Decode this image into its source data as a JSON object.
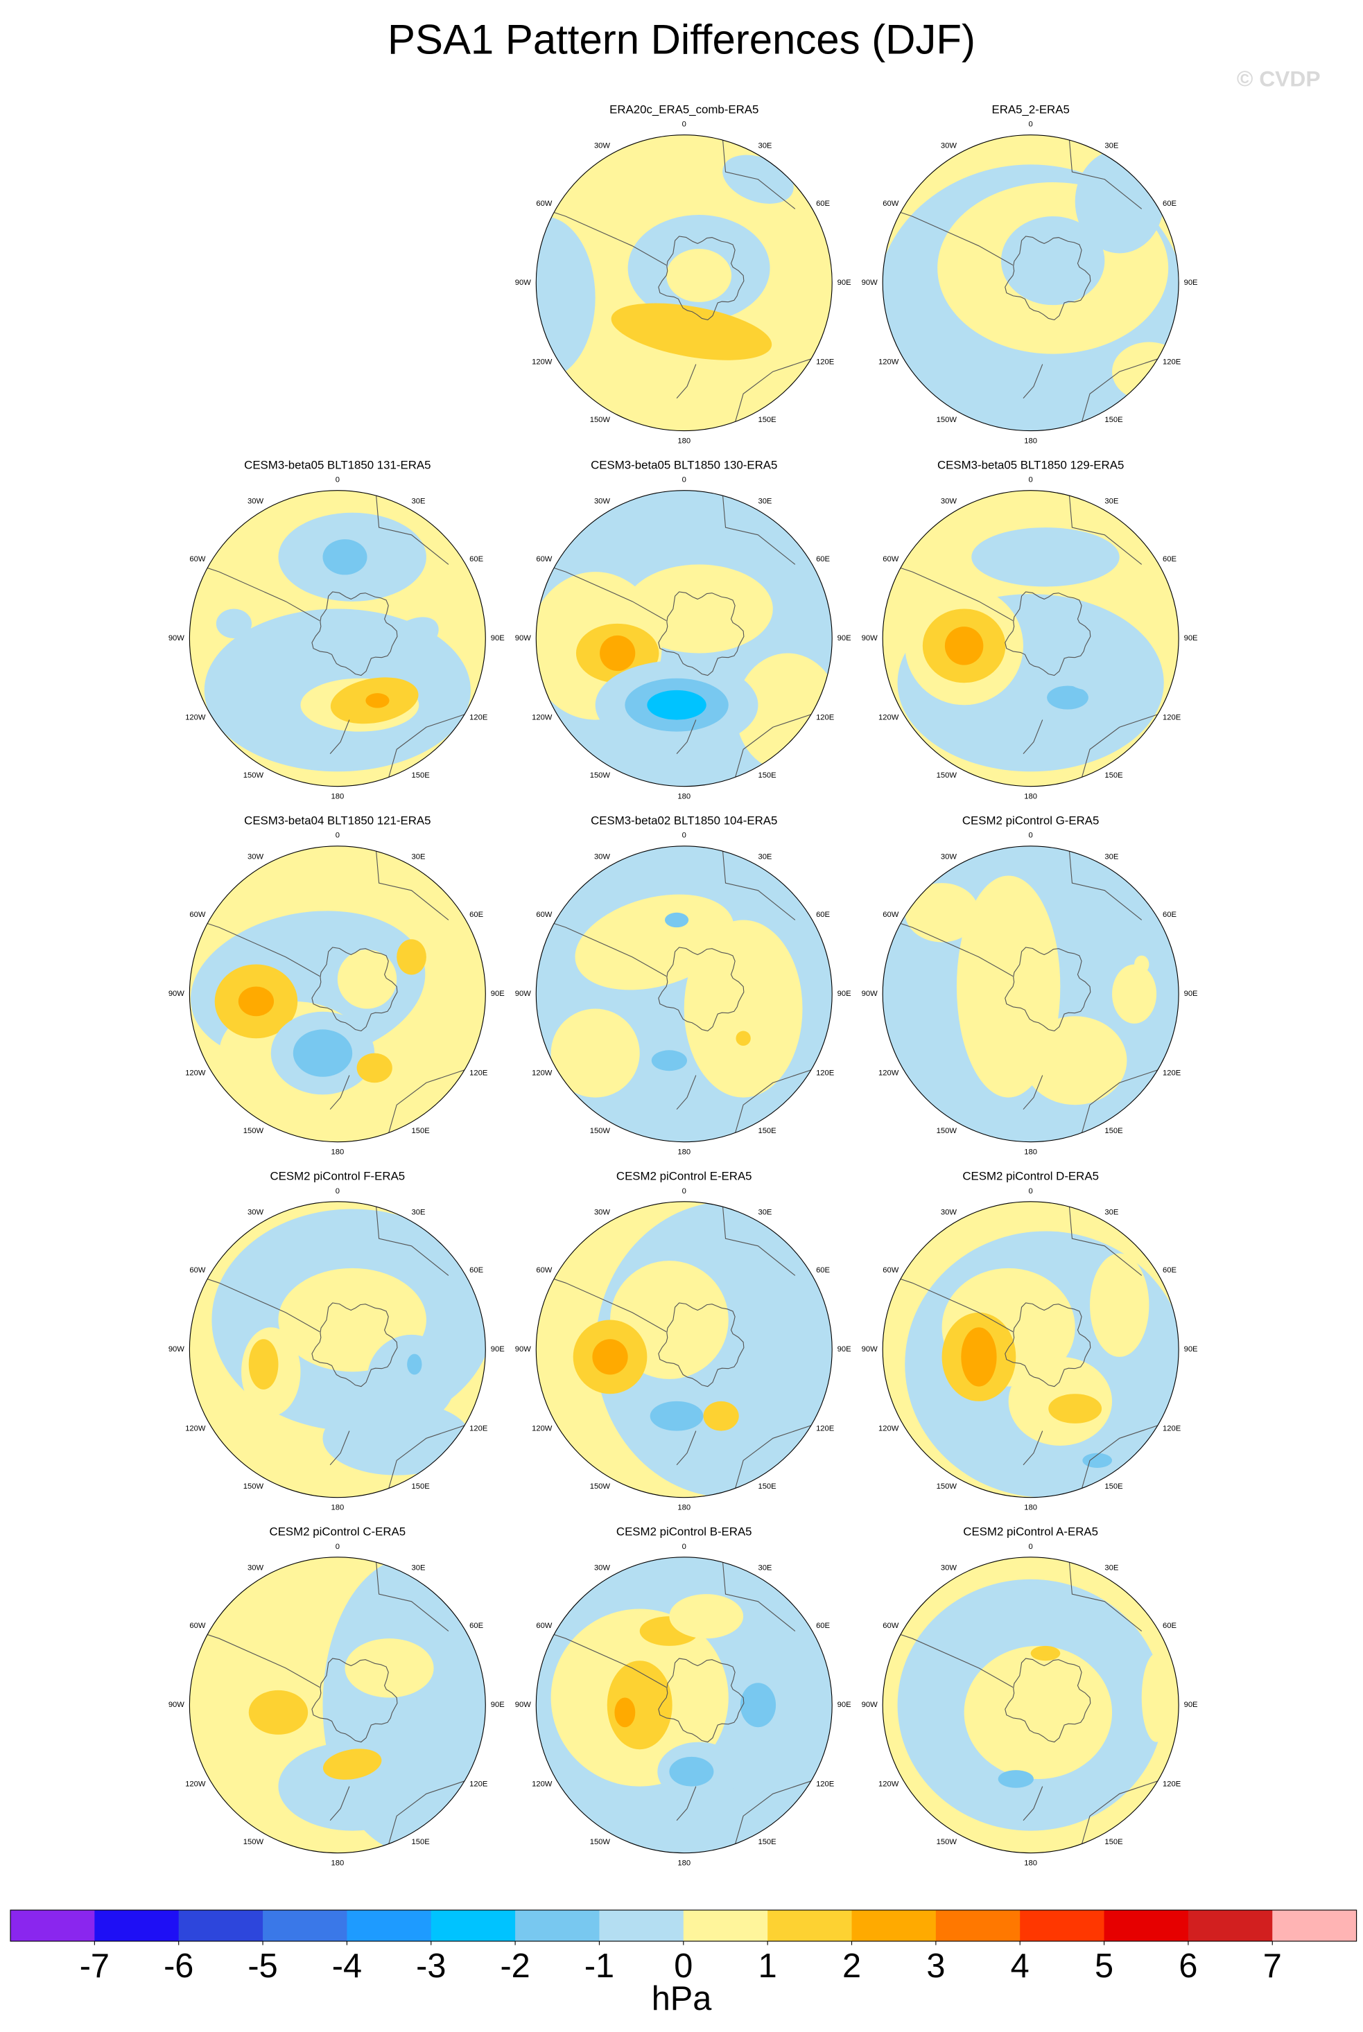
{
  "title": "PSA1 Pattern Differences (DJF)",
  "watermark": "© CVDP",
  "panels": [
    {
      "title": "ERA20c_ERA5_comb-ERA5"
    },
    {
      "title": "ERA5_2-ERA5"
    },
    {
      "title": "CESM3-beta05 BLT1850 131-ERA5"
    },
    {
      "title": "CESM3-beta05 BLT1850 130-ERA5"
    },
    {
      "title": "CESM3-beta05 BLT1850 129-ERA5"
    },
    {
      "title": "CESM3-beta04 BLT1850 121-ERA5"
    },
    {
      "title": "CESM3-beta02 BLT1850 104-ERA5"
    },
    {
      "title": "CESM2 piControl G-ERA5"
    },
    {
      "title": "CESM2 piControl F-ERA5"
    },
    {
      "title": "CESM2 piControl E-ERA5"
    },
    {
      "title": "CESM2 piControl D-ERA5"
    },
    {
      "title": "CESM2 piControl C-ERA5"
    },
    {
      "title": "CESM2 piControl B-ERA5"
    },
    {
      "title": "CESM2 piControl A-ERA5"
    }
  ],
  "longitude_labels": [
    "0",
    "30E",
    "60E",
    "90E",
    "120E",
    "150E",
    "180",
    "150W",
    "120W",
    "90W",
    "60W",
    "30W"
  ],
  "colorbar": {
    "levels": [
      -7,
      -6,
      -5,
      -4,
      -3,
      -2,
      -1,
      0,
      1,
      2,
      3,
      4,
      5,
      6,
      7
    ],
    "colors": [
      "#8a26ee",
      "#1e0ff5",
      "#2d46dc",
      "#3a78e8",
      "#1e9bff",
      "#00c3ff",
      "#78c8f0",
      "#b4def2",
      "#fff59b",
      "#fdd232",
      "#ffaa00",
      "#ff7800",
      "#ff3700",
      "#e60000",
      "#d21f1f",
      "#ffb4b4"
    ],
    "label": "hPa"
  }
}
